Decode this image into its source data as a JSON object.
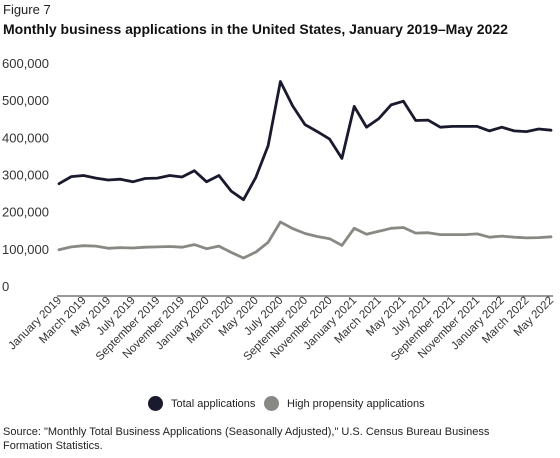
{
  "figure_label": "Figure 7",
  "title": "Monthly business applications in the United States, January 2019–May 2022",
  "source": "Source: \"Monthly Total Business Applications (Seasonally Adjusted),\"  U.S. Census Bureau Business Formation Statistics.",
  "colors": {
    "total": "#1a1a2e",
    "high_propensity": "#8a8882",
    "baseline": "#333333"
  },
  "chart_data": {
    "type": "line",
    "title": "Monthly business applications in the United States, January 2019–May 2022",
    "xlabel": "",
    "ylabel": "",
    "ylim": [
      0,
      600000
    ],
    "yticks": [
      0,
      100000,
      200000,
      300000,
      400000,
      500000,
      600000
    ],
    "ytick_labels": [
      "0",
      "100,000",
      "200,000",
      "300,000",
      "400,000",
      "500,000",
      "600,000"
    ],
    "grid": false,
    "legend_position": "bottom",
    "x": [
      "Jan 2019",
      "Feb 2019",
      "Mar 2019",
      "Apr 2019",
      "May 2019",
      "Jun 2019",
      "Jul 2019",
      "Aug 2019",
      "Sep 2019",
      "Oct 2019",
      "Nov 2019",
      "Dec 2019",
      "Jan 2020",
      "Feb 2020",
      "Mar 2020",
      "Apr 2020",
      "May 2020",
      "Jun 2020",
      "Jul 2020",
      "Aug 2020",
      "Sep 2020",
      "Oct 2020",
      "Nov 2020",
      "Dec 2020",
      "Jan 2021",
      "Feb 2021",
      "Mar 2021",
      "Apr 2021",
      "May 2021",
      "Jun 2021",
      "Jul 2021",
      "Aug 2021",
      "Sep 2021",
      "Oct 2021",
      "Nov 2021",
      "Dec 2021",
      "Jan 2022",
      "Feb 2022",
      "Mar 2022",
      "Apr 2022",
      "May 2022"
    ],
    "x_tick_labels": [
      "January 2019",
      "March 2019",
      "May 2019",
      "July 2019",
      "September 2019",
      "November 2019",
      "January 2020",
      "March 2020",
      "May 2020",
      "July 2020",
      "September 2020",
      "November 2020",
      "January 2021",
      "March 2021",
      "May 2021",
      "July 2021",
      "September 2021",
      "November 2021",
      "January 2022",
      "March 2022",
      "May 2022"
    ],
    "series": [
      {
        "name": "Total applications",
        "values": [
          278000,
          297000,
          300000,
          293000,
          288000,
          290000,
          283000,
          292000,
          293000,
          300000,
          296000,
          313000,
          283000,
          300000,
          258000,
          235000,
          295000,
          380000,
          553000,
          487000,
          437000,
          418000,
          398000,
          346000,
          486000,
          430000,
          453000,
          490000,
          500000,
          448000,
          449000,
          430000,
          432000,
          432000,
          432000,
          420000,
          430000,
          420000,
          418000,
          425000,
          422000
        ]
      },
      {
        "name": "High propensity applications",
        "values": [
          100000,
          108000,
          111000,
          110000,
          104000,
          106000,
          105000,
          107000,
          108000,
          109000,
          107000,
          114000,
          103000,
          110000,
          93000,
          78000,
          94000,
          120000,
          175000,
          157000,
          144000,
          136000,
          130000,
          112000,
          158000,
          142000,
          150000,
          158000,
          160000,
          145000,
          146000,
          141000,
          141000,
          141000,
          143000,
          134000,
          137000,
          134000,
          132000,
          133000,
          135000
        ]
      }
    ]
  }
}
